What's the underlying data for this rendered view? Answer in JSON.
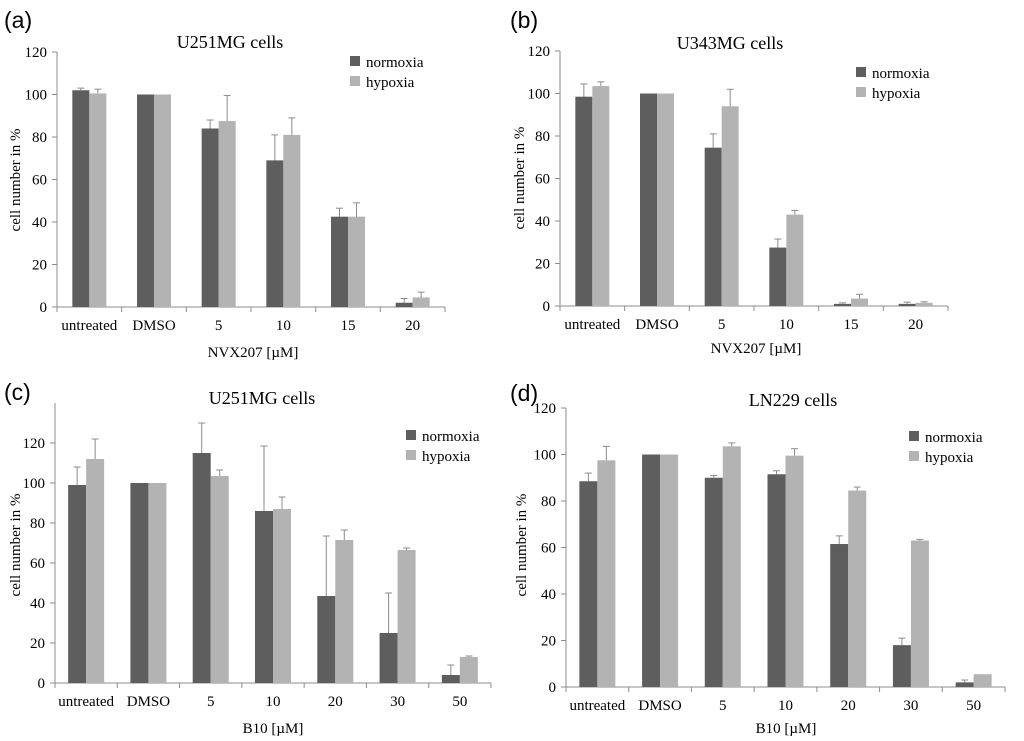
{
  "figure": {
    "panels": [
      "(a)",
      "(b)",
      "(c)",
      "(d)"
    ]
  },
  "colors": {
    "normoxia": "#5e5e5e",
    "hypoxia": "#b3b3b3",
    "axis": "#8c8c8c",
    "error": "#8c8c8c"
  },
  "chart_data": [
    {
      "panel": "(a)",
      "type": "bar",
      "title": "U251MG cells",
      "xlabel": "NVX207 [µM]",
      "ylabel": "cell number in %",
      "ylim": [
        0,
        120
      ],
      "yticks": [
        0,
        20,
        40,
        60,
        80,
        100,
        120
      ],
      "categories": [
        "untreated",
        "DMSO",
        "5",
        "10",
        "15",
        "20"
      ],
      "legend_position": "top-right",
      "series": [
        {
          "name": "normoxia",
          "values": [
            102,
            100,
            84,
            69,
            42.5,
            2
          ],
          "errors": [
            1,
            0,
            4,
            12,
            4,
            2
          ]
        },
        {
          "name": "hypoxia",
          "values": [
            100.5,
            100,
            87.5,
            81,
            42.5,
            4.5
          ],
          "errors": [
            2,
            0,
            12,
            8,
            6.5,
            2.5
          ]
        }
      ]
    },
    {
      "panel": "(b)",
      "type": "bar",
      "title": "U343MG cells",
      "xlabel": "NVX207 [µM]",
      "ylabel": "cell number in %",
      "ylim": [
        0,
        120
      ],
      "yticks": [
        0,
        20,
        40,
        60,
        80,
        100,
        120
      ],
      "categories": [
        "untreated",
        "DMSO",
        "5",
        "10",
        "15",
        "20"
      ],
      "legend_position": "top-right",
      "series": [
        {
          "name": "normoxia",
          "values": [
            98.5,
            100,
            74.5,
            27.5,
            1,
            1
          ],
          "errors": [
            6,
            0,
            6.5,
            4,
            0.5,
            0.8
          ]
        },
        {
          "name": "hypoxia",
          "values": [
            103.5,
            100,
            94,
            43,
            3.5,
            1.5
          ],
          "errors": [
            2,
            0,
            8,
            2,
            2,
            0.5
          ]
        }
      ]
    },
    {
      "panel": "(c)",
      "type": "bar",
      "title": "U251MG cells",
      "xlabel": "B10 [µM]",
      "ylabel": "cell number in %",
      "ylim": [
        0,
        140
      ],
      "yticks": [
        0,
        20,
        40,
        60,
        80,
        100,
        120
      ],
      "categories": [
        "untreated",
        "DMSO",
        "5",
        "10",
        "20",
        "30",
        "50"
      ],
      "legend_position": "top-right",
      "series": [
        {
          "name": "normoxia",
          "values": [
            99,
            100,
            115,
            86,
            43.5,
            25,
            4
          ],
          "errors": [
            9,
            0,
            15,
            32.5,
            30,
            20,
            5
          ]
        },
        {
          "name": "hypoxia",
          "values": [
            112,
            100,
            103.5,
            87,
            71.5,
            66.5,
            13
          ],
          "errors": [
            10,
            0,
            3,
            6,
            5,
            1,
            0.5
          ]
        }
      ]
    },
    {
      "panel": "(d)",
      "type": "bar",
      "title": "LN229 cells",
      "xlabel": "B10 [µM]",
      "ylabel": "cell number in %",
      "ylim": [
        0,
        120
      ],
      "yticks": [
        0,
        20,
        40,
        60,
        80,
        100,
        120
      ],
      "categories": [
        "untreated",
        "DMSO",
        "5",
        "10",
        "20",
        "30",
        "50"
      ],
      "legend_position": "top-right",
      "series": [
        {
          "name": "normoxia",
          "values": [
            88.5,
            100,
            90,
            91.5,
            61.5,
            18,
            2
          ],
          "errors": [
            3.5,
            0,
            1,
            1.5,
            3.5,
            3,
            1
          ]
        },
        {
          "name": "hypoxia",
          "values": [
            97.5,
            100,
            103.5,
            99.5,
            84.5,
            63,
            5.5
          ],
          "errors": [
            6,
            0,
            1.5,
            3,
            1.5,
            0.5,
            0
          ]
        }
      ]
    }
  ]
}
